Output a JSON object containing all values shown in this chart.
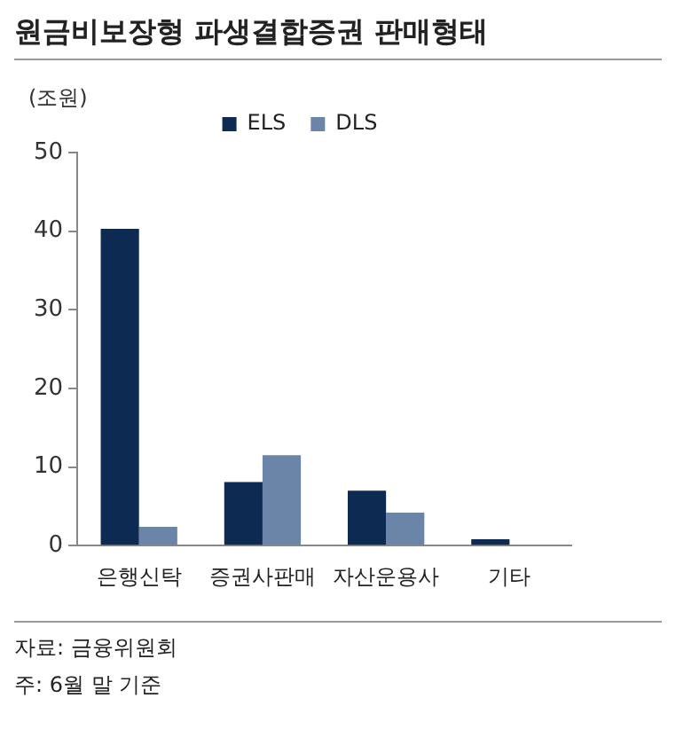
{
  "chart_data": {
    "type": "bar",
    "title": "원금비보장형 파생결합증권 판매형태",
    "ylabel": "(조원)",
    "categories": [
      "은행신탁",
      "증권사판매",
      "자산운용사",
      "기타"
    ],
    "series": [
      {
        "name": "ELS",
        "color": "#0d2b52",
        "values": [
          40.3,
          8.1,
          7.0,
          0.8
        ]
      },
      {
        "name": "DLS",
        "color": "#6a85a8",
        "values": [
          2.4,
          11.5,
          4.2,
          0
        ]
      }
    ],
    "ylim": [
      0,
      50
    ],
    "yticks": [
      0,
      10,
      20,
      30,
      40,
      50
    ],
    "grid": false,
    "legend": "top",
    "annotations": [
      "자료: 금융위원회",
      "주: 6월 말 기준"
    ]
  }
}
